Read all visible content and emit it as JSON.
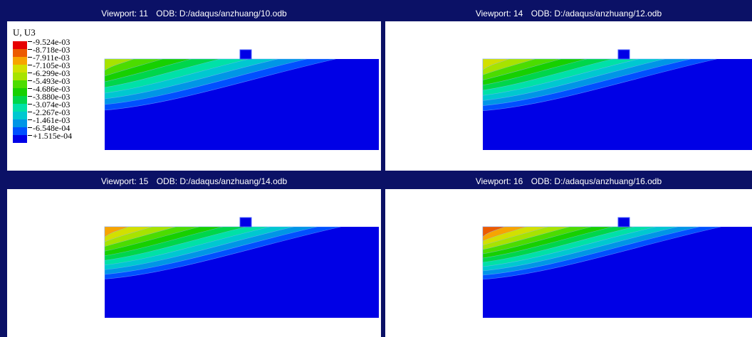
{
  "viewports": [
    {
      "number": "Viewport: 11",
      "odb": "ODB: D:/adaqus/anzhuang/10.odb",
      "intensity": 0.78
    },
    {
      "number": "Viewport: 14",
      "odb": "ODB: D:/adaqus/anzhuang/12.odb",
      "intensity": 0.82
    },
    {
      "number": "Viewport: 15",
      "odb": "ODB: D:/adaqus/anzhuang/14.odb",
      "intensity": 0.9
    },
    {
      "number": "Viewport: 16",
      "odb": "ODB: D:/adaqus/anzhuang/16.odb",
      "intensity": 1.0
    }
  ],
  "legend": {
    "title": "U, U3",
    "labels": [
      "-9.524e-03",
      "-8.718e-03",
      "-7.911e-03",
      "-7.105e-03",
      "-6.299e-03",
      "-5.493e-03",
      "-4.686e-03",
      "-3.880e-03",
      "-3.074e-03",
      "-2.267e-03",
      "-1.461e-03",
      "-6.548e-04",
      "+1.515e-04"
    ],
    "colors": [
      "#e60000",
      "#ec5a00",
      "#f7a400",
      "#d2e000",
      "#a7e300",
      "#4cdc00",
      "#17d000",
      "#00d64b",
      "#00e1a7",
      "#00c8d0",
      "#0096e6",
      "#0050ff",
      "#0000e6"
    ]
  }
}
